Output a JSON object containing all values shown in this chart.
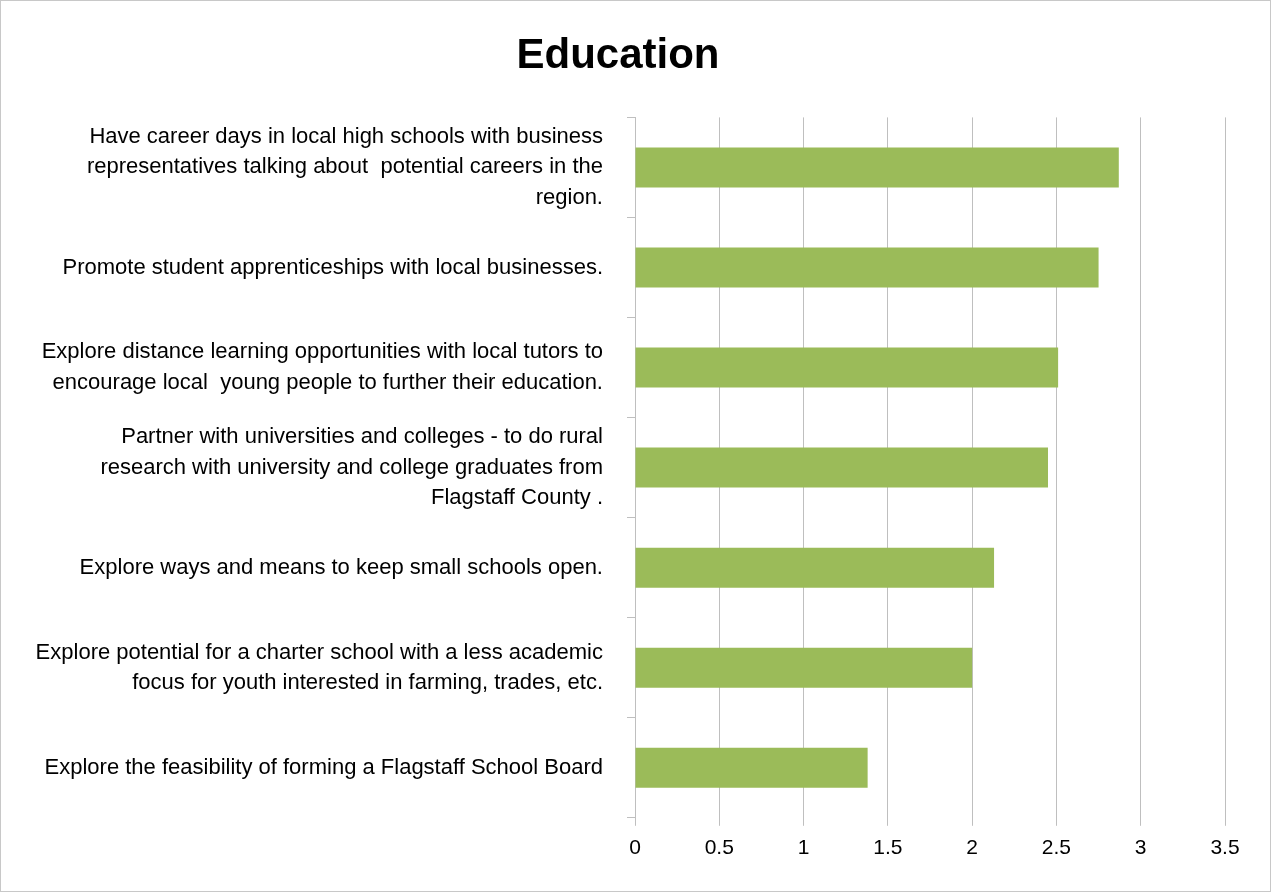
{
  "chart_data": {
    "type": "bar",
    "orientation": "horizontal",
    "title": "Education",
    "categories": [
      "Have career days in local high schools with business representatives talking about  potential careers in the region.",
      "Promote student apprenticeships with local businesses.",
      "Explore distance learning opportunities with local tutors to encourage local  young people to further their education.",
      "Partner with universities and colleges - to do rural research with university and college graduates from Flagstaff County .",
      "Explore ways and means to keep small schools open.",
      "Explore potential for a charter school with a less academic focus for youth interested in farming, trades, etc.",
      "Explore the feasibility of forming a Flagstaff School Board"
    ],
    "values": [
      2.87,
      2.75,
      2.51,
      2.45,
      2.13,
      2.0,
      1.38
    ],
    "color": "#9bbb59",
    "xlim": [
      0,
      3.5
    ],
    "xticks": [
      0,
      0.5,
      1,
      1.5,
      2,
      2.5,
      3,
      3.5
    ],
    "grid": "x",
    "legend": false
  }
}
